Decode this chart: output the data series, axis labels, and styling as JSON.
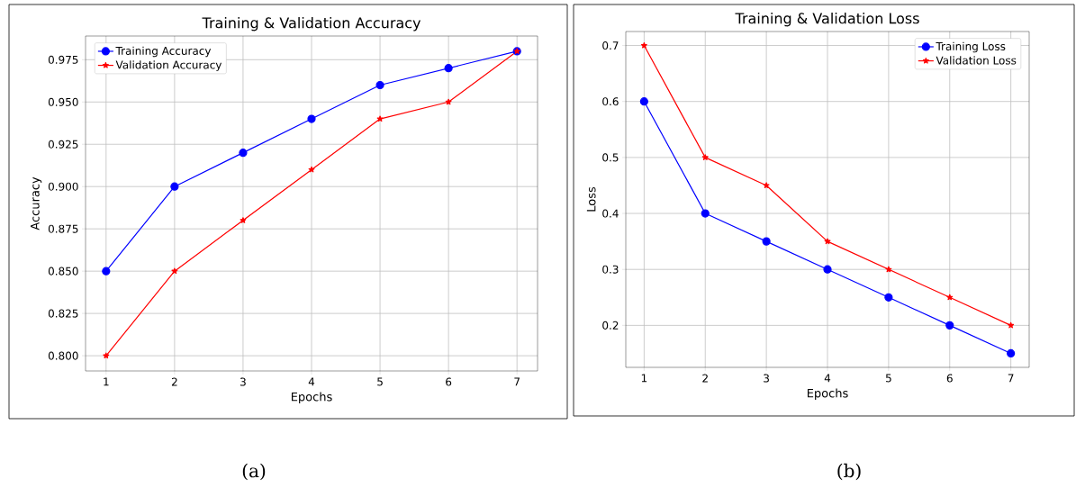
{
  "chart_data": [
    {
      "type": "line",
      "title": "Training & Validation Accuracy",
      "xlabel": "Epochs",
      "ylabel": "Accuracy",
      "x": [
        1,
        2,
        3,
        4,
        5,
        6,
        7
      ],
      "series": [
        {
          "name": "Training Accuracy",
          "color": "#0000ff",
          "marker": "circle",
          "values": [
            0.85,
            0.9,
            0.92,
            0.94,
            0.96,
            0.97,
            0.98
          ]
        },
        {
          "name": "Validation Accuracy",
          "color": "#ff0000",
          "marker": "star",
          "values": [
            0.8,
            0.85,
            0.88,
            0.91,
            0.94,
            0.95,
            0.98
          ]
        }
      ],
      "xlim": [
        0.7,
        7.3
      ],
      "xticks": [
        1,
        2,
        3,
        4,
        5,
        6,
        7
      ],
      "ylim": [
        0.791,
        0.989
      ],
      "yticks": [
        {
          "value": 0.8,
          "label": "0.800"
        },
        {
          "value": 0.825,
          "label": "0.825"
        },
        {
          "value": 0.85,
          "label": "0.850"
        },
        {
          "value": 0.875,
          "label": "0.875"
        },
        {
          "value": 0.9,
          "label": "0.900"
        },
        {
          "value": 0.925,
          "label": "0.925"
        },
        {
          "value": 0.95,
          "label": "0.950"
        },
        {
          "value": 0.975,
          "label": "0.975"
        }
      ],
      "grid": true,
      "legend": "top left",
      "annotations": [
        "(a)"
      ]
    },
    {
      "type": "line",
      "title": "Training & Validation Loss",
      "xlabel": "Epochs",
      "ylabel": "Loss",
      "x": [
        1,
        2,
        3,
        4,
        5,
        6,
        7
      ],
      "series": [
        {
          "name": "Training Loss",
          "color": "#0000ff",
          "marker": "circle",
          "values": [
            0.6,
            0.4,
            0.35,
            0.3,
            0.25,
            0.2,
            0.15
          ]
        },
        {
          "name": "Validation Loss",
          "color": "#ff0000",
          "marker": "star",
          "values": [
            0.7,
            0.5,
            0.45,
            0.35,
            0.3,
            0.25,
            0.2
          ]
        }
      ],
      "xlim": [
        0.7,
        7.3
      ],
      "xticks": [
        1,
        2,
        3,
        4,
        5,
        6,
        7
      ],
      "ylim": [
        0.125,
        0.725
      ],
      "yticks": [
        0.2,
        0.3,
        0.4,
        0.5,
        0.6,
        0.7
      ],
      "grid": true,
      "legend": "top right",
      "annotations": [
        "(b)"
      ]
    }
  ]
}
